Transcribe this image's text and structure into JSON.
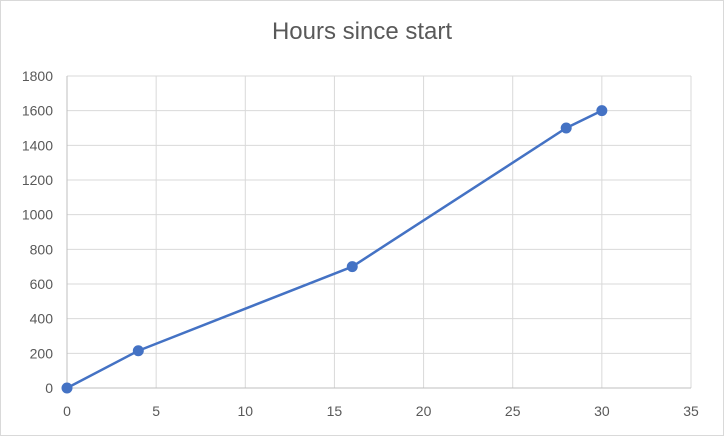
{
  "chart_data": {
    "type": "line",
    "title": "Hours since start",
    "xlabel": "",
    "ylabel": "",
    "xlim": [
      0,
      35
    ],
    "ylim": [
      0,
      1800
    ],
    "x_ticks": [
      0,
      5,
      10,
      15,
      20,
      25,
      30,
      35
    ],
    "y_ticks": [
      0,
      200,
      400,
      600,
      800,
      1000,
      1200,
      1400,
      1600,
      1800
    ],
    "grid": true,
    "legend": "none",
    "series": [
      {
        "color": "#4472c4",
        "points": [
          {
            "x": 0,
            "y": 0
          },
          {
            "x": 4,
            "y": 215
          },
          {
            "x": 16,
            "y": 700
          },
          {
            "x": 28,
            "y": 1500
          },
          {
            "x": 30,
            "y": 1600
          }
        ]
      }
    ]
  }
}
